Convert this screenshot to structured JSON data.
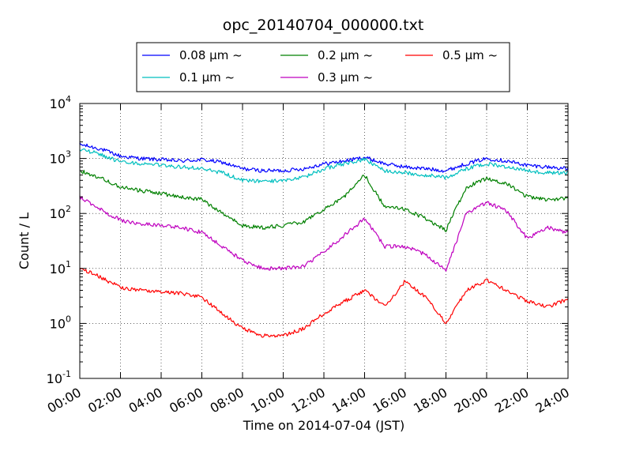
{
  "chart_data": {
    "type": "line",
    "title": "opc_20140704_000000.txt",
    "xlabel": "Time on 2014-07-04 (JST)",
    "ylabel": "Count / L",
    "y_scale": "log",
    "ylim": [
      0.1,
      10000
    ],
    "xlim": [
      "00:00",
      "24:00"
    ],
    "grid": true,
    "grid_style": "dotted",
    "legend_position": "top",
    "legend_columns": 3,
    "x_ticks": [
      "00:00",
      "02:00",
      "04:00",
      "06:00",
      "08:00",
      "10:00",
      "12:00",
      "14:00",
      "16:00",
      "18:00",
      "20:00",
      "22:00",
      "24:00"
    ],
    "y_ticks": [
      {
        "value": 0.1,
        "base": "10",
        "exp": "-1"
      },
      {
        "value": 1,
        "base": "10",
        "exp": "0"
      },
      {
        "value": 10,
        "base": "10",
        "exp": "1"
      },
      {
        "value": 100,
        "base": "10",
        "exp": "2"
      },
      {
        "value": 1000,
        "base": "10",
        "exp": "3"
      },
      {
        "value": 10000,
        "base": "10",
        "exp": "4"
      }
    ],
    "x": [
      "00:00",
      "01:00",
      "02:00",
      "03:00",
      "04:00",
      "05:00",
      "06:00",
      "07:00",
      "08:00",
      "09:00",
      "10:00",
      "11:00",
      "12:00",
      "13:00",
      "14:00",
      "15:00",
      "16:00",
      "17:00",
      "18:00",
      "19:00",
      "20:00",
      "21:00",
      "22:00",
      "23:00",
      "24:00"
    ],
    "series": [
      {
        "name": "0.08 μm ~",
        "color": "#0000ff",
        "values": [
          1800,
          1500,
          1100,
          1000,
          950,
          900,
          950,
          850,
          650,
          600,
          600,
          650,
          800,
          900,
          1050,
          800,
          700,
          650,
          600,
          800,
          1000,
          900,
          750,
          700,
          650
        ]
      },
      {
        "name": "0.1 μm ~",
        "color": "#00bfbf",
        "values": [
          1500,
          1200,
          850,
          800,
          750,
          700,
          650,
          550,
          400,
          380,
          400,
          450,
          650,
          800,
          950,
          600,
          550,
          500,
          450,
          650,
          800,
          700,
          600,
          550,
          550
        ]
      },
      {
        "name": "0.2 μm ~",
        "color": "#008000",
        "values": [
          600,
          450,
          300,
          260,
          230,
          200,
          180,
          100,
          60,
          55,
          60,
          70,
          120,
          200,
          500,
          130,
          120,
          80,
          50,
          300,
          430,
          350,
          200,
          180,
          190
        ]
      },
      {
        "name": "0.3 μm ~",
        "color": "#bf00bf",
        "values": [
          200,
          120,
          75,
          65,
          60,
          55,
          45,
          25,
          14,
          10,
          10,
          11,
          20,
          40,
          80,
          25,
          25,
          18,
          9,
          100,
          160,
          110,
          35,
          55,
          45
        ]
      },
      {
        "name": "0.5 μm ~",
        "color": "#ff0000",
        "values": [
          10,
          7,
          4.5,
          4,
          3.8,
          3.5,
          3,
          1.5,
          0.8,
          0.6,
          0.6,
          0.8,
          1.5,
          2.5,
          4,
          2,
          6,
          3,
          1,
          4,
          6,
          4,
          2.5,
          2,
          2.8
        ]
      }
    ]
  }
}
